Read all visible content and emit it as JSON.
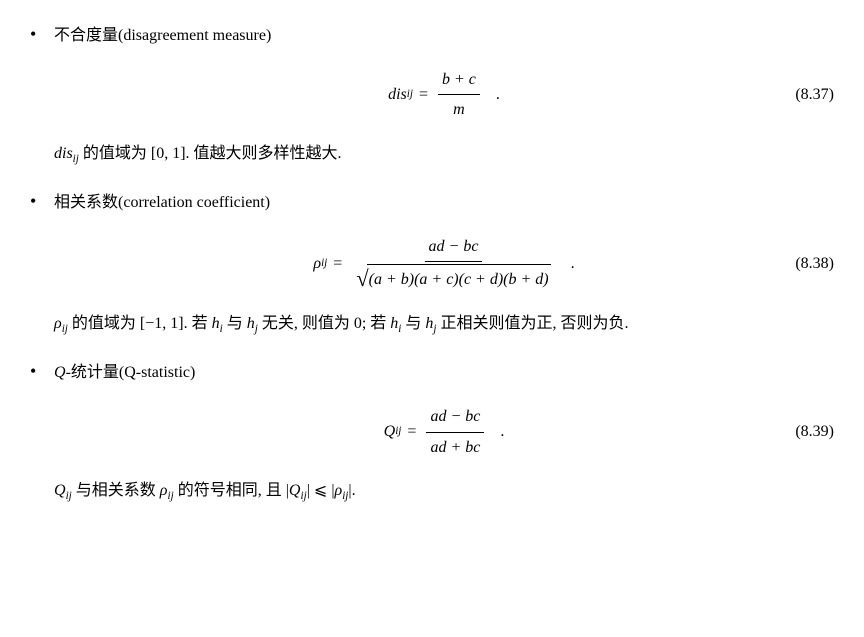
{
  "items": [
    {
      "heading_cn": "不合度量",
      "heading_en": "(disagreement measure)",
      "eq_lhs": "dis",
      "eq_sub": "ij",
      "eq_numer": "b + c",
      "eq_denom": "m",
      "eq_num": "(8.37)",
      "desc_parts": {
        "p1": "dis",
        "p1_sub": "ij",
        "p2": " 的值域为 [0, 1]. 值越大则多样性越大."
      }
    },
    {
      "heading_cn": "相关系数",
      "heading_en": "(correlation coefficient)",
      "eq_lhs": "ρ",
      "eq_sub": "ij",
      "eq_numer": "ad − bc",
      "eq_denom_sqrt": "(a + b)(a + c)(c + d)(b + d)",
      "eq_num": "(8.38)",
      "desc_parts": {
        "p1": "ρ",
        "p1_sub": "ij",
        "p2": " 的值域为 [−1, 1]. 若 ",
        "h1": "h",
        "h1_sub": "i",
        "p3": " 与 ",
        "h2": "h",
        "h2_sub": "j",
        "p4": " 无关, 则值为 0; 若 ",
        "h3": "h",
        "h3_sub": "i",
        "p5": " 与 ",
        "h4": "h",
        "h4_sub": "j",
        "p6": " 正相关则值为正, 否则为负."
      }
    },
    {
      "heading_cn_prefix": "Q",
      "heading_cn": "-统计量",
      "heading_en_prefix": "(Q",
      "heading_en": "-statistic)",
      "eq_lhs": "Q",
      "eq_sub": "ij",
      "eq_numer": "ad − bc",
      "eq_denom": "ad + bc",
      "eq_num": "(8.39)",
      "desc_parts": {
        "p1": "Q",
        "p1_sub": "ij",
        "p2": " 与相关系数 ",
        "rho": "ρ",
        "rho_sub": "ij",
        "p3": " 的符号相同, 且 |",
        "q2": "Q",
        "q2_sub": "ij",
        "p4": "| ⩽ |",
        "rho2": "ρ",
        "rho2_sub": "ij",
        "p5": "|."
      }
    }
  ]
}
